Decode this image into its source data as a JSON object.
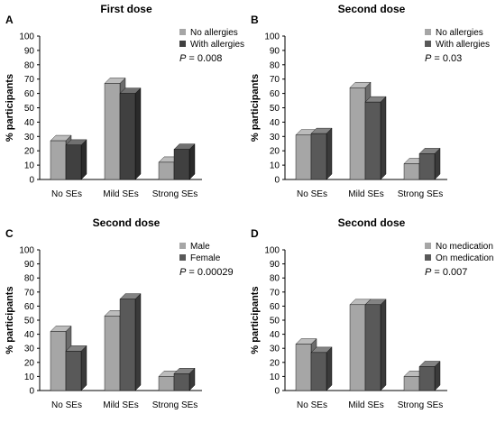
{
  "chart_data": [
    {
      "type": "bar",
      "letter": "A",
      "title": "First dose",
      "ylabel": "% participants",
      "ylim": [
        0,
        100
      ],
      "yticks": [
        0,
        10,
        20,
        30,
        40,
        50,
        60,
        70,
        80,
        90,
        100
      ],
      "categories": [
        "No SEs",
        "Mild SEs",
        "Strong SEs"
      ],
      "series": [
        {
          "name": "No allergies",
          "values": [
            27,
            67,
            12
          ],
          "color": "#a6a6a6"
        },
        {
          "name": "With allergies",
          "values": [
            24,
            60,
            21
          ],
          "color": "#404040"
        }
      ],
      "annotation": {
        "p_label": "P",
        "p_value": " = 0.008"
      },
      "legend_position": "top-right",
      "style_3d": true,
      "grid": false
    },
    {
      "type": "bar",
      "letter": "B",
      "title": "Second dose",
      "ylabel": "% participants",
      "ylim": [
        0,
        100
      ],
      "yticks": [
        0,
        10,
        20,
        30,
        40,
        50,
        60,
        70,
        80,
        90,
        100
      ],
      "categories": [
        "No SEs",
        "Mild SEs",
        "Strong SEs"
      ],
      "series": [
        {
          "name": "No allergies",
          "values": [
            31,
            64,
            11
          ],
          "color": "#a6a6a6"
        },
        {
          "name": "With allergies",
          "values": [
            32,
            54,
            18
          ],
          "color": "#595959"
        }
      ],
      "annotation": {
        "p_label": "P",
        "p_value": " = 0.03"
      },
      "legend_position": "top-right",
      "style_3d": true,
      "grid": false
    },
    {
      "type": "bar",
      "letter": "C",
      "title": "Second dose",
      "ylabel": "% participants",
      "ylim": [
        0,
        100
      ],
      "yticks": [
        0,
        10,
        20,
        30,
        40,
        50,
        60,
        70,
        80,
        90,
        100
      ],
      "categories": [
        "No SEs",
        "Mild SEs",
        "Strong SEs"
      ],
      "series": [
        {
          "name": "Male",
          "values": [
            42,
            53,
            10
          ],
          "color": "#a6a6a6"
        },
        {
          "name": "Female",
          "values": [
            28,
            65,
            12
          ],
          "color": "#595959"
        }
      ],
      "annotation": {
        "p_label": "P",
        "p_value": " = 0.00029"
      },
      "legend_position": "top-right",
      "style_3d": true,
      "grid": false
    },
    {
      "type": "bar",
      "letter": "D",
      "title": "Second dose",
      "ylabel": "% participants",
      "ylim": [
        0,
        100
      ],
      "yticks": [
        0,
        10,
        20,
        30,
        40,
        50,
        60,
        70,
        80,
        90,
        100
      ],
      "categories": [
        "No SEs",
        "Mild SEs",
        "Strong SEs"
      ],
      "series": [
        {
          "name": "No medication",
          "values": [
            33,
            61,
            10
          ],
          "color": "#a6a6a6"
        },
        {
          "name": "On medication",
          "values": [
            27,
            61,
            17
          ],
          "color": "#595959"
        }
      ],
      "annotation": {
        "p_label": "P",
        "p_value": " = 0.007"
      },
      "legend_position": "top-right",
      "style_3d": true,
      "grid": false
    }
  ]
}
